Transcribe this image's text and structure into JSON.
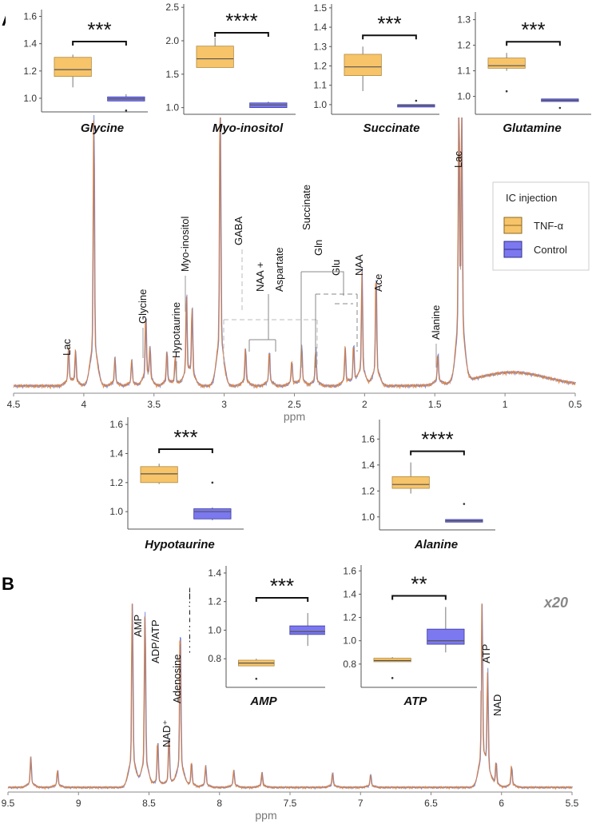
{
  "panels": {
    "a": "A",
    "b": "B"
  },
  "colors": {
    "tnf": "#F7C46A",
    "control": "#7B78F0",
    "trace_orange": "#E8863A",
    "trace_blue": "#7D8FD8",
    "trace_mix": "#B07A6E"
  },
  "legend": {
    "title": "IC injection",
    "items": [
      {
        "label": "TNF-α"
      },
      {
        "label": "Control"
      }
    ]
  },
  "scale_note": "x20",
  "chart_data": [
    {
      "id": "glycine",
      "type": "box",
      "title": "Glycine",
      "significance": "***",
      "ylim": [
        0.9,
        1.65
      ],
      "ticks": [
        "1.0",
        "1.2",
        "1.4",
        "1.6"
      ],
      "tick_values": [
        1.0,
        1.2,
        1.4,
        1.6
      ],
      "groups": [
        {
          "name": "TNF-α",
          "whisker_low": 1.08,
          "q1": 1.16,
          "median": 1.21,
          "q3": 1.3,
          "whisker_high": 1.32,
          "outliers": []
        },
        {
          "name": "Control",
          "whisker_low": 0.98,
          "q1": 0.98,
          "median": 0.995,
          "q3": 1.01,
          "whisker_high": 1.03,
          "outliers": [
            0.91
          ]
        }
      ]
    },
    {
      "id": "myo",
      "type": "box",
      "title": "Myo-inositol",
      "significance": "****",
      "ylim": [
        0.9,
        2.55
      ],
      "ticks": [
        "1.0",
        "1.5",
        "2.0",
        "2.5"
      ],
      "tick_values": [
        1.0,
        1.5,
        2.0,
        2.5
      ],
      "groups": [
        {
          "name": "TNF-α",
          "whisker_low": 1.6,
          "q1": 1.6,
          "median": 1.73,
          "q3": 1.92,
          "whisker_high": 2.05,
          "outliers": []
        },
        {
          "name": "Control",
          "whisker_low": 1.0,
          "q1": 1.0,
          "median": 1.04,
          "q3": 1.07,
          "whisker_high": 1.09,
          "outliers": []
        }
      ]
    },
    {
      "id": "succinate",
      "type": "box",
      "title": "Succinate",
      "significance": "***",
      "ylim": [
        0.95,
        1.52
      ],
      "ticks": [
        "1.0",
        "1.1",
        "1.2",
        "1.3",
        "1.4",
        "1.5"
      ],
      "tick_values": [
        1.0,
        1.1,
        1.2,
        1.3,
        1.4,
        1.5
      ],
      "groups": [
        {
          "name": "TNF-α",
          "whisker_low": 1.07,
          "q1": 1.15,
          "median": 1.195,
          "q3": 1.26,
          "whisker_high": 1.3,
          "outliers": []
        },
        {
          "name": "Control",
          "whisker_low": 0.99,
          "q1": 0.99,
          "median": 0.995,
          "q3": 1.0,
          "whisker_high": 1.0,
          "outliers": [
            1.02
          ]
        }
      ]
    },
    {
      "id": "glutamine",
      "type": "box",
      "title": "Glutamine",
      "significance": "***",
      "ylim": [
        0.93,
        1.33
      ],
      "ticks": [
        "1.0",
        "1.1",
        "1.2",
        "1.3"
      ],
      "tick_values": [
        1.0,
        1.1,
        1.2,
        1.3
      ],
      "groups": [
        {
          "name": "TNF-α",
          "whisker_low": 1.1,
          "q1": 1.11,
          "median": 1.12,
          "q3": 1.15,
          "whisker_high": 1.17,
          "outliers": [
            1.02
          ]
        },
        {
          "name": "Control",
          "whisker_low": 0.98,
          "q1": 0.98,
          "median": 0.985,
          "q3": 0.99,
          "whisker_high": 0.99,
          "outliers": [
            0.955
          ]
        }
      ]
    },
    {
      "id": "hypotaurine",
      "type": "box",
      "title": "Hypotaurine",
      "significance": "***",
      "ylim": [
        0.88,
        1.65
      ],
      "ticks": [
        "1.0",
        "1.2",
        "1.4",
        "1.6"
      ],
      "tick_values": [
        1.0,
        1.2,
        1.4,
        1.6
      ],
      "groups": [
        {
          "name": "TNF-α",
          "whisker_low": 1.19,
          "q1": 1.2,
          "median": 1.26,
          "q3": 1.31,
          "whisker_high": 1.33,
          "outliers": []
        },
        {
          "name": "Control",
          "whisker_low": 0.94,
          "q1": 0.95,
          "median": 1.0,
          "q3": 1.02,
          "whisker_high": 1.03,
          "outliers": [
            1.2
          ]
        }
      ]
    },
    {
      "id": "alanine",
      "type": "box",
      "title": "Alanine",
      "significance": "****",
      "ylim": [
        0.9,
        1.75
      ],
      "ticks": [
        "1.0",
        "1.2",
        "1.4",
        "1.6"
      ],
      "tick_values": [
        1.0,
        1.2,
        1.4,
        1.6
      ],
      "groups": [
        {
          "name": "TNF-α",
          "whisker_low": 1.18,
          "q1": 1.22,
          "median": 1.25,
          "q3": 1.31,
          "whisker_high": 1.42,
          "outliers": []
        },
        {
          "name": "Control",
          "whisker_low": 0.96,
          "q1": 0.96,
          "median": 0.97,
          "q3": 0.98,
          "whisker_high": 0.98,
          "outliers": [
            1.1
          ]
        }
      ]
    },
    {
      "id": "amp",
      "type": "box",
      "title": "AMP",
      "significance": "***",
      "ylim": [
        0.6,
        1.45
      ],
      "ticks": [
        "0.8",
        "1.0",
        "1.2",
        "1.4"
      ],
      "tick_values": [
        0.8,
        1.0,
        1.2,
        1.4
      ],
      "groups": [
        {
          "name": "TNF-α",
          "whisker_low": 0.75,
          "q1": 0.75,
          "median": 0.77,
          "q3": 0.79,
          "whisker_high": 0.8,
          "outliers": [
            0.66
          ]
        },
        {
          "name": "Control",
          "whisker_low": 0.89,
          "q1": 0.97,
          "median": 0.99,
          "q3": 1.03,
          "whisker_high": 1.12,
          "outliers": []
        }
      ]
    },
    {
      "id": "atp",
      "type": "box",
      "title": "ATP",
      "significance": "**",
      "ylim": [
        0.6,
        1.65
      ],
      "ticks": [
        "0.8",
        "1.0",
        "1.2",
        "1.4",
        "1.6"
      ],
      "tick_values": [
        0.8,
        1.0,
        1.2,
        1.4,
        1.6
      ],
      "groups": [
        {
          "name": "TNF-α",
          "whisker_low": 0.82,
          "q1": 0.82,
          "median": 0.83,
          "q3": 0.85,
          "whisker_high": 0.86,
          "outliers": [
            0.68
          ]
        },
        {
          "name": "Control",
          "whisker_low": 0.9,
          "q1": 0.97,
          "median": 1.0,
          "q3": 1.1,
          "whisker_high": 1.29,
          "outliers": []
        }
      ]
    },
    {
      "id": "spectrumA",
      "type": "line",
      "xlabel": "ppm",
      "xlim": [
        4.5,
        0.5
      ],
      "ticks": [
        "4.5",
        "4",
        "3.5",
        "3",
        "2.5",
        "2",
        "1.5",
        "1",
        "0.5"
      ],
      "tick_values": [
        4.5,
        4,
        3.5,
        3,
        2.5,
        2,
        1.5,
        1,
        0.5
      ],
      "peaks": [
        {
          "ppm": 4.11,
          "h": 0.12
        },
        {
          "ppm": 4.06,
          "h": 0.11
        },
        {
          "ppm": 3.93,
          "h": 0.86
        },
        {
          "ppm": 3.78,
          "h": 0.09
        },
        {
          "ppm": 3.66,
          "h": 0.08
        },
        {
          "ppm": 3.56,
          "h": 0.22
        },
        {
          "ppm": 3.53,
          "h": 0.11
        },
        {
          "ppm": 3.41,
          "h": 0.11
        },
        {
          "ppm": 3.35,
          "h": 0.09
        },
        {
          "ppm": 3.27,
          "h": 0.28
        },
        {
          "ppm": 3.23,
          "h": 0.24
        },
        {
          "ppm": 3.03,
          "h": 0.98
        },
        {
          "ppm": 2.85,
          "h": 0.12
        },
        {
          "ppm": 2.68,
          "h": 0.11
        },
        {
          "ppm": 2.52,
          "h": 0.08
        },
        {
          "ppm": 2.45,
          "h": 0.13
        },
        {
          "ppm": 2.35,
          "h": 0.12
        },
        {
          "ppm": 2.14,
          "h": 0.12
        },
        {
          "ppm": 2.08,
          "h": 0.13
        },
        {
          "ppm": 2.02,
          "h": 0.36
        },
        {
          "ppm": 1.92,
          "h": 0.36
        },
        {
          "ppm": 1.48,
          "h": 0.1
        },
        {
          "ppm": 1.33,
          "h": 0.82
        },
        {
          "ppm": 1.31,
          "h": 0.78
        }
      ],
      "labels": [
        {
          "text": "Lac",
          "ppm": 4.11
        },
        {
          "text": "Glycine",
          "ppm": 3.56
        },
        {
          "text": "Hypotaurine",
          "ppm": 3.35
        },
        {
          "text": "Myo-inositol",
          "ppm": 3.27
        },
        {
          "text": "GABA",
          "ppm": 2.99
        },
        {
          "text": "NAA +",
          "ppm": 2.81
        },
        {
          "text": "Aspartate",
          "ppm": 2.67
        },
        {
          "text": "Succinate",
          "ppm": 2.44
        },
        {
          "text": "Gln",
          "ppm": 2.37
        },
        {
          "text": "Glu",
          "ppm": 2.2
        },
        {
          "text": "NAA",
          "ppm": 2.02
        },
        {
          "text": "Ace",
          "ppm": 1.92
        },
        {
          "text": "Alanine",
          "ppm": 1.48
        },
        {
          "text": "Lac",
          "ppm": 1.33
        }
      ]
    },
    {
      "id": "spectrumB",
      "type": "line",
      "xlabel": "ppm",
      "xlim": [
        9.5,
        5.5
      ],
      "ticks": [
        "9.5",
        "9",
        "8.5",
        "8",
        "7.5",
        "7",
        "6.5",
        "6",
        "5.5"
      ],
      "tick_values": [
        9.5,
        9,
        8.5,
        8,
        7.5,
        7,
        6.5,
        6,
        5.5
      ],
      "peaks": [
        {
          "ppm": 9.34,
          "h": 0.14
        },
        {
          "ppm": 9.15,
          "h": 0.08
        },
        {
          "ppm": 8.62,
          "h": 0.9
        },
        {
          "ppm": 8.53,
          "h": 0.82
        },
        {
          "ppm": 8.44,
          "h": 0.22
        },
        {
          "ppm": 8.36,
          "h": 0.24
        },
        {
          "ppm": 8.28,
          "h": 0.76
        },
        {
          "ppm": 8.2,
          "h": 0.12
        },
        {
          "ppm": 8.1,
          "h": 0.1
        },
        {
          "ppm": 7.9,
          "h": 0.08
        },
        {
          "ppm": 7.7,
          "h": 0.07
        },
        {
          "ppm": 7.2,
          "h": 0.07
        },
        {
          "ppm": 6.93,
          "h": 0.06
        },
        {
          "ppm": 6.14,
          "h": 0.91
        },
        {
          "ppm": 6.1,
          "h": 0.5
        },
        {
          "ppm": 6.04,
          "h": 0.12
        },
        {
          "ppm": 5.93,
          "h": 0.1
        }
      ],
      "labels": [
        {
          "text": "AMP",
          "ppm": 8.62
        },
        {
          "text": "ADP/ATP",
          "ppm": 8.53
        },
        {
          "text": "NAD⁺",
          "ppm": 8.44
        },
        {
          "text": "Adenosine",
          "ppm": 8.34
        },
        {
          "text": "AMP/ADP/ATP",
          "ppm": 8.27
        },
        {
          "text": "ATP",
          "ppm": 6.14
        },
        {
          "text": "NAD",
          "ppm": 6.08
        }
      ]
    }
  ]
}
